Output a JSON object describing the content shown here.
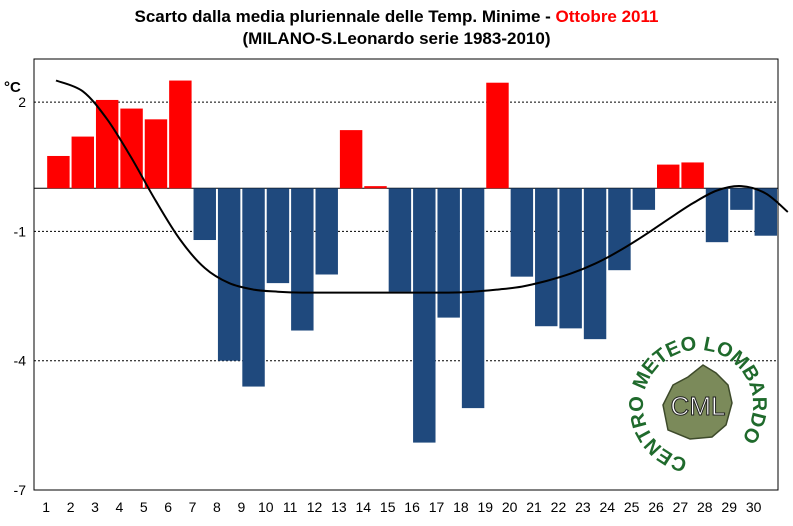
{
  "title": {
    "line1_prefix": "Scarto dalla media pluriennale delle Temp. Minime - ",
    "line1_highlight": "Ottobre 2011",
    "line2": "(MILANO-S.Leonardo serie 1983-2010)"
  },
  "colors": {
    "positive": "#ff0000",
    "negative": "#1f497d",
    "trend": "#000000",
    "highlight": "#ff0000",
    "logo_text": "#1f6a2c"
  },
  "logo": {
    "ring_text": "CENTRO METEO LOMBARDO",
    "center_text": "CML"
  },
  "chart_data": {
    "type": "bar",
    "title": "Scarto dalla media pluriennale delle Temp. Minime - Ottobre 2011",
    "subtitle": "(MILANO-S.Leonardo serie 1983-2010)",
    "ylabel": "°C",
    "xlabel": "",
    "ylim": [
      -7,
      3
    ],
    "yticks": [
      2,
      -1,
      -4,
      -7
    ],
    "grid": true,
    "categories": [
      "1",
      "2",
      "3",
      "4",
      "5",
      "6",
      "7",
      "8",
      "9",
      "10",
      "11",
      "12",
      "13",
      "14",
      "15",
      "16",
      "17",
      "18",
      "19",
      "20",
      "21",
      "22",
      "23",
      "24",
      "25",
      "26",
      "27",
      "28",
      "29",
      "30"
    ],
    "values": [
      0.75,
      1.2,
      2.05,
      1.85,
      1.6,
      2.5,
      -1.2,
      -4.0,
      -4.6,
      -2.2,
      -3.3,
      -2.0,
      1.35,
      0.05,
      -2.4,
      -5.9,
      -3.0,
      -5.1,
      2.45,
      -2.05,
      -3.2,
      -3.25,
      -3.5,
      -1.9,
      -0.5,
      0.55,
      0.6,
      -1.25,
      -0.5,
      -1.1
    ],
    "trend": {
      "type": "smoothed polynomial",
      "x": [
        0.9,
        2,
        3,
        4,
        5,
        6,
        7,
        8,
        9,
        10,
        11,
        12,
        13,
        14,
        15,
        16,
        17,
        18,
        19,
        20,
        21,
        22,
        23,
        24,
        25,
        26,
        27,
        28,
        29,
        30,
        30.9
      ],
      "values": [
        2.5,
        2.25,
        1.6,
        0.7,
        -0.3,
        -1.2,
        -1.85,
        -2.2,
        -2.35,
        -2.4,
        -2.42,
        -2.42,
        -2.42,
        -2.42,
        -2.42,
        -2.42,
        -2.42,
        -2.4,
        -2.35,
        -2.28,
        -2.15,
        -1.98,
        -1.75,
        -1.45,
        -1.1,
        -0.72,
        -0.35,
        -0.05,
        0.05,
        -0.12,
        -0.55
      ]
    }
  }
}
